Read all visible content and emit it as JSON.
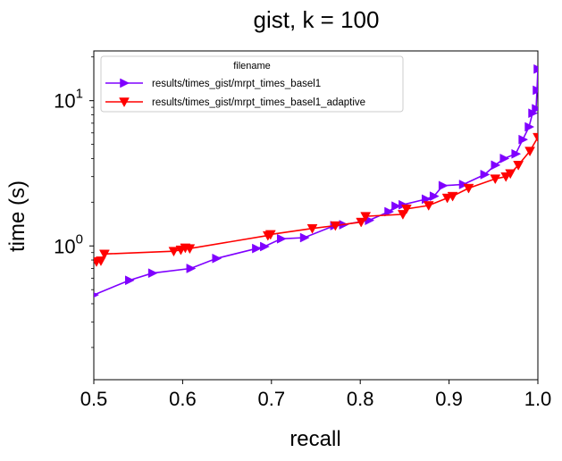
{
  "chart_data": {
    "type": "line",
    "title": "gist, k = 100",
    "xlabel": "recall",
    "ylabel": "time (s)",
    "xlim": [
      0.5,
      1.0
    ],
    "ylim": [
      0.12,
      22
    ],
    "y_scale": "log",
    "grid": false,
    "legend": {
      "title": "filename",
      "position": "top-left"
    },
    "x_ticks": [
      {
        "value": 0.5,
        "label": "0.5"
      },
      {
        "value": 0.6,
        "label": "0.6"
      },
      {
        "value": 0.7,
        "label": "0.7"
      },
      {
        "value": 0.8,
        "label": "0.8"
      },
      {
        "value": 0.9,
        "label": "0.9"
      },
      {
        "value": 1.0,
        "label": "1.0"
      }
    ],
    "y_ticks": [
      {
        "value": 1,
        "base": "10",
        "exp": "0"
      },
      {
        "value": 10,
        "base": "10",
        "exp": "1"
      }
    ],
    "series": [
      {
        "name": "results/times_gist/mrpt_times_basel1",
        "color": "#7f00ff",
        "marker": "triangle-right",
        "x": [
          0.5,
          0.54,
          0.566,
          0.609,
          0.638,
          0.683,
          0.692,
          0.711,
          0.737,
          0.771,
          0.781,
          0.81,
          0.832,
          0.84,
          0.848,
          0.874,
          0.883,
          0.893,
          0.916,
          0.94,
          0.952,
          0.962,
          0.975,
          0.983,
          0.99,
          0.994,
          0.998,
          0.999,
          1.0
        ],
        "y": [
          0.46,
          0.58,
          0.65,
          0.7,
          0.82,
          0.96,
          0.99,
          1.12,
          1.14,
          1.38,
          1.4,
          1.5,
          1.72,
          1.88,
          1.92,
          2.1,
          2.2,
          2.6,
          2.65,
          3.1,
          3.6,
          4.0,
          4.3,
          5.4,
          6.6,
          8.2,
          8.8,
          11.8,
          16.5
        ]
      },
      {
        "name": "results/times_gist/mrpt_times_basel1_adaptive",
        "color": "#ff0000",
        "marker": "triangle-down",
        "x": [
          0.503,
          0.508,
          0.512,
          0.59,
          0.598,
          0.603,
          0.608,
          0.696,
          0.699,
          0.746,
          0.772,
          0.801,
          0.806,
          0.848,
          0.852,
          0.877,
          0.898,
          0.904,
          0.922,
          0.952,
          0.964,
          0.969,
          0.978,
          0.991,
          1.0
        ],
        "y": [
          0.78,
          0.79,
          0.88,
          0.92,
          0.94,
          0.97,
          0.96,
          1.18,
          1.2,
          1.32,
          1.38,
          1.46,
          1.6,
          1.65,
          1.8,
          1.9,
          2.14,
          2.2,
          2.5,
          2.9,
          3.0,
          3.15,
          3.6,
          4.5,
          5.6
        ]
      }
    ]
  }
}
